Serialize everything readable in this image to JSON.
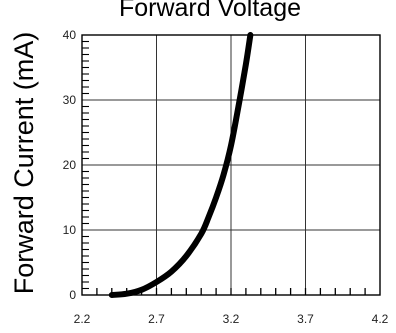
{
  "chart_data": {
    "type": "line",
    "title": "Forward Voltage",
    "xlabel": "",
    "ylabel": "Forward Current (mA)",
    "xlim": [
      2.2,
      4.2
    ],
    "ylim": [
      0,
      40
    ],
    "x_ticks": [
      "2.2",
      "2.7",
      "3.2",
      "3.7",
      "4.2"
    ],
    "y_ticks": [
      "0",
      "10",
      "20",
      "30",
      "40"
    ],
    "grid": true,
    "legend": "none",
    "colors": {
      "curve": "#000000",
      "grid": "#333333",
      "frame": "#000000"
    },
    "series": [
      {
        "x": [
          2.4,
          2.5,
          2.6,
          2.7,
          2.8,
          2.9,
          3.0,
          3.05,
          3.1,
          3.15,
          3.2,
          3.25,
          3.3,
          3.33
        ],
        "values": [
          0.0,
          0.2,
          0.8,
          2.0,
          3.6,
          6.0,
          9.4,
          12.0,
          15.0,
          18.5,
          23.0,
          29.0,
          35.5,
          40.0
        ]
      }
    ]
  }
}
